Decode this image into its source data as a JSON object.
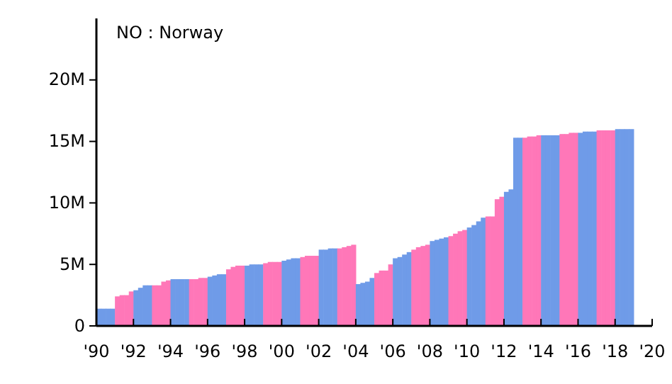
{
  "chart_data": {
    "type": "bar",
    "title": "NO : Norway",
    "x": [
      1990.125,
      1990.375,
      1990.625,
      1990.875,
      1991.125,
      1991.375,
      1991.625,
      1991.875,
      1992.125,
      1992.375,
      1992.625,
      1992.875,
      1993.125,
      1993.375,
      1993.625,
      1993.875,
      1994.125,
      1994.375,
      1994.625,
      1994.875,
      1995.125,
      1995.375,
      1995.625,
      1995.875,
      1996.125,
      1996.375,
      1996.625,
      1996.875,
      1997.125,
      1997.375,
      1997.625,
      1997.875,
      1998.125,
      1998.375,
      1998.625,
      1998.875,
      1999.125,
      1999.375,
      1999.625,
      1999.875,
      2000.125,
      2000.375,
      2000.625,
      2000.875,
      2001.125,
      2001.375,
      2001.625,
      2001.875,
      2002.125,
      2002.375,
      2002.625,
      2002.875,
      2003.125,
      2003.375,
      2003.625,
      2003.875,
      2004.125,
      2004.375,
      2004.625,
      2004.875,
      2005.125,
      2005.375,
      2005.625,
      2005.875,
      2006.125,
      2006.375,
      2006.625,
      2006.875,
      2007.125,
      2007.375,
      2007.625,
      2007.875,
      2008.125,
      2008.375,
      2008.625,
      2008.875,
      2009.125,
      2009.375,
      2009.625,
      2009.875,
      2010.125,
      2010.375,
      2010.625,
      2010.875,
      2011.125,
      2011.375,
      2011.625,
      2011.875,
      2012.125,
      2012.375,
      2012.625,
      2012.875,
      2013.125,
      2013.375,
      2013.625,
      2013.875,
      2014.125,
      2014.375,
      2014.625,
      2014.875,
      2015.125,
      2015.375,
      2015.625,
      2015.875,
      2016.125,
      2016.375,
      2016.625,
      2016.875,
      2017.125,
      2017.375,
      2017.625,
      2017.875,
      2018.125,
      2018.375,
      2018.625,
      2018.875
    ],
    "values": [
      1400000,
      1400000,
      1400000,
      1400000,
      2400000,
      2500000,
      2500000,
      2800000,
      2900000,
      3100000,
      3300000,
      3300000,
      3300000,
      3300000,
      3600000,
      3700000,
      3800000,
      3800000,
      3800000,
      3800000,
      3800000,
      3800000,
      3900000,
      3900000,
      4000000,
      4100000,
      4200000,
      4200000,
      4600000,
      4800000,
      4900000,
      4900000,
      4900000,
      5000000,
      5000000,
      5000000,
      5100000,
      5200000,
      5200000,
      5200000,
      5300000,
      5400000,
      5500000,
      5500000,
      5600000,
      5700000,
      5700000,
      5700000,
      6200000,
      6200000,
      6300000,
      6300000,
      6300000,
      6400000,
      6500000,
      6600000,
      3400000,
      3500000,
      3600000,
      3900000,
      4300000,
      4500000,
      4500000,
      5000000,
      5500000,
      5600000,
      5800000,
      6000000,
      6200000,
      6400000,
      6500000,
      6600000,
      6900000,
      7000000,
      7100000,
      7200000,
      7300000,
      7500000,
      7700000,
      7800000,
      8000000,
      8200000,
      8500000,
      8800000,
      8900000,
      8900000,
      10300000,
      10500000,
      10900000,
      11100000,
      15300000,
      15300000,
      15300000,
      15400000,
      15400000,
      15500000,
      15500000,
      15500000,
      15500000,
      15500000,
      15600000,
      15600000,
      15700000,
      15700000,
      15700000,
      15800000,
      15800000,
      15800000,
      15900000,
      15900000,
      15900000,
      15900000,
      16000000,
      16000000,
      16000000,
      16000000
    ],
    "colors": [
      "#6f9be8",
      "#6f9be8",
      "#6f9be8",
      "#6f9be8",
      "#ff77b8",
      "#ff77b8",
      "#ff77b8",
      "#ff77b8",
      "#6f9be8",
      "#6f9be8",
      "#6f9be8",
      "#6f9be8",
      "#ff77b8",
      "#ff77b8",
      "#ff77b8",
      "#ff77b8",
      "#6f9be8",
      "#6f9be8",
      "#6f9be8",
      "#6f9be8",
      "#ff77b8",
      "#ff77b8",
      "#ff77b8",
      "#ff77b8",
      "#6f9be8",
      "#6f9be8",
      "#6f9be8",
      "#6f9be8",
      "#ff77b8",
      "#ff77b8",
      "#ff77b8",
      "#ff77b8",
      "#6f9be8",
      "#6f9be8",
      "#6f9be8",
      "#6f9be8",
      "#ff77b8",
      "#ff77b8",
      "#ff77b8",
      "#ff77b8",
      "#6f9be8",
      "#6f9be8",
      "#6f9be8",
      "#6f9be8",
      "#ff77b8",
      "#ff77b8",
      "#ff77b8",
      "#ff77b8",
      "#6f9be8",
      "#6f9be8",
      "#6f9be8",
      "#6f9be8",
      "#ff77b8",
      "#ff77b8",
      "#ff77b8",
      "#ff77b8",
      "#6f9be8",
      "#6f9be8",
      "#6f9be8",
      "#6f9be8",
      "#ff77b8",
      "#ff77b8",
      "#ff77b8",
      "#ff77b8",
      "#6f9be8",
      "#6f9be8",
      "#6f9be8",
      "#6f9be8",
      "#ff77b8",
      "#ff77b8",
      "#ff77b8",
      "#ff77b8",
      "#6f9be8",
      "#6f9be8",
      "#6f9be8",
      "#6f9be8",
      "#ff77b8",
      "#ff77b8",
      "#ff77b8",
      "#ff77b8",
      "#6f9be8",
      "#6f9be8",
      "#6f9be8",
      "#6f9be8",
      "#ff77b8",
      "#ff77b8",
      "#ff77b8",
      "#ff77b8",
      "#6f9be8",
      "#6f9be8",
      "#6f9be8",
      "#6f9be8",
      "#ff77b8",
      "#ff77b8",
      "#ff77b8",
      "#ff77b8",
      "#6f9be8",
      "#6f9be8",
      "#6f9be8",
      "#6f9be8",
      "#ff77b8",
      "#ff77b8",
      "#ff77b8",
      "#ff77b8",
      "#6f9be8",
      "#6f9be8",
      "#6f9be8",
      "#6f9be8",
      "#ff77b8",
      "#ff77b8",
      "#ff77b8",
      "#ff77b8",
      "#6f9be8",
      "#6f9be8",
      "#6f9be8",
      "#6f9be8"
    ],
    "xlim": [
      1990,
      2020
    ],
    "xticks": [
      {
        "value": 1990,
        "label": "'90"
      },
      {
        "value": 1992,
        "label": "'92"
      },
      {
        "value": 1994,
        "label": "'94"
      },
      {
        "value": 1996,
        "label": "'96"
      },
      {
        "value": 1998,
        "label": "'98"
      },
      {
        "value": 2000,
        "label": "'00"
      },
      {
        "value": 2002,
        "label": "'02"
      },
      {
        "value": 2004,
        "label": "'04"
      },
      {
        "value": 2006,
        "label": "'06"
      },
      {
        "value": 2008,
        "label": "'08"
      },
      {
        "value": 2010,
        "label": "'10"
      },
      {
        "value": 2012,
        "label": "'12"
      },
      {
        "value": 2014,
        "label": "'14"
      },
      {
        "value": 2016,
        "label": "'16"
      },
      {
        "value": 2018,
        "label": "'18"
      },
      {
        "value": 2020,
        "label": "'20"
      }
    ],
    "ylim": [
      0,
      25000000
    ],
    "yticks": [
      0,
      {
        "value": 5000000,
        "label": "5M"
      },
      {
        "value": 10000000,
        "label": "10M"
      },
      {
        "value": 15000000,
        "label": "15M"
      },
      {
        "value": 20000000,
        "label": "20M"
      }
    ],
    "grid": false
  }
}
